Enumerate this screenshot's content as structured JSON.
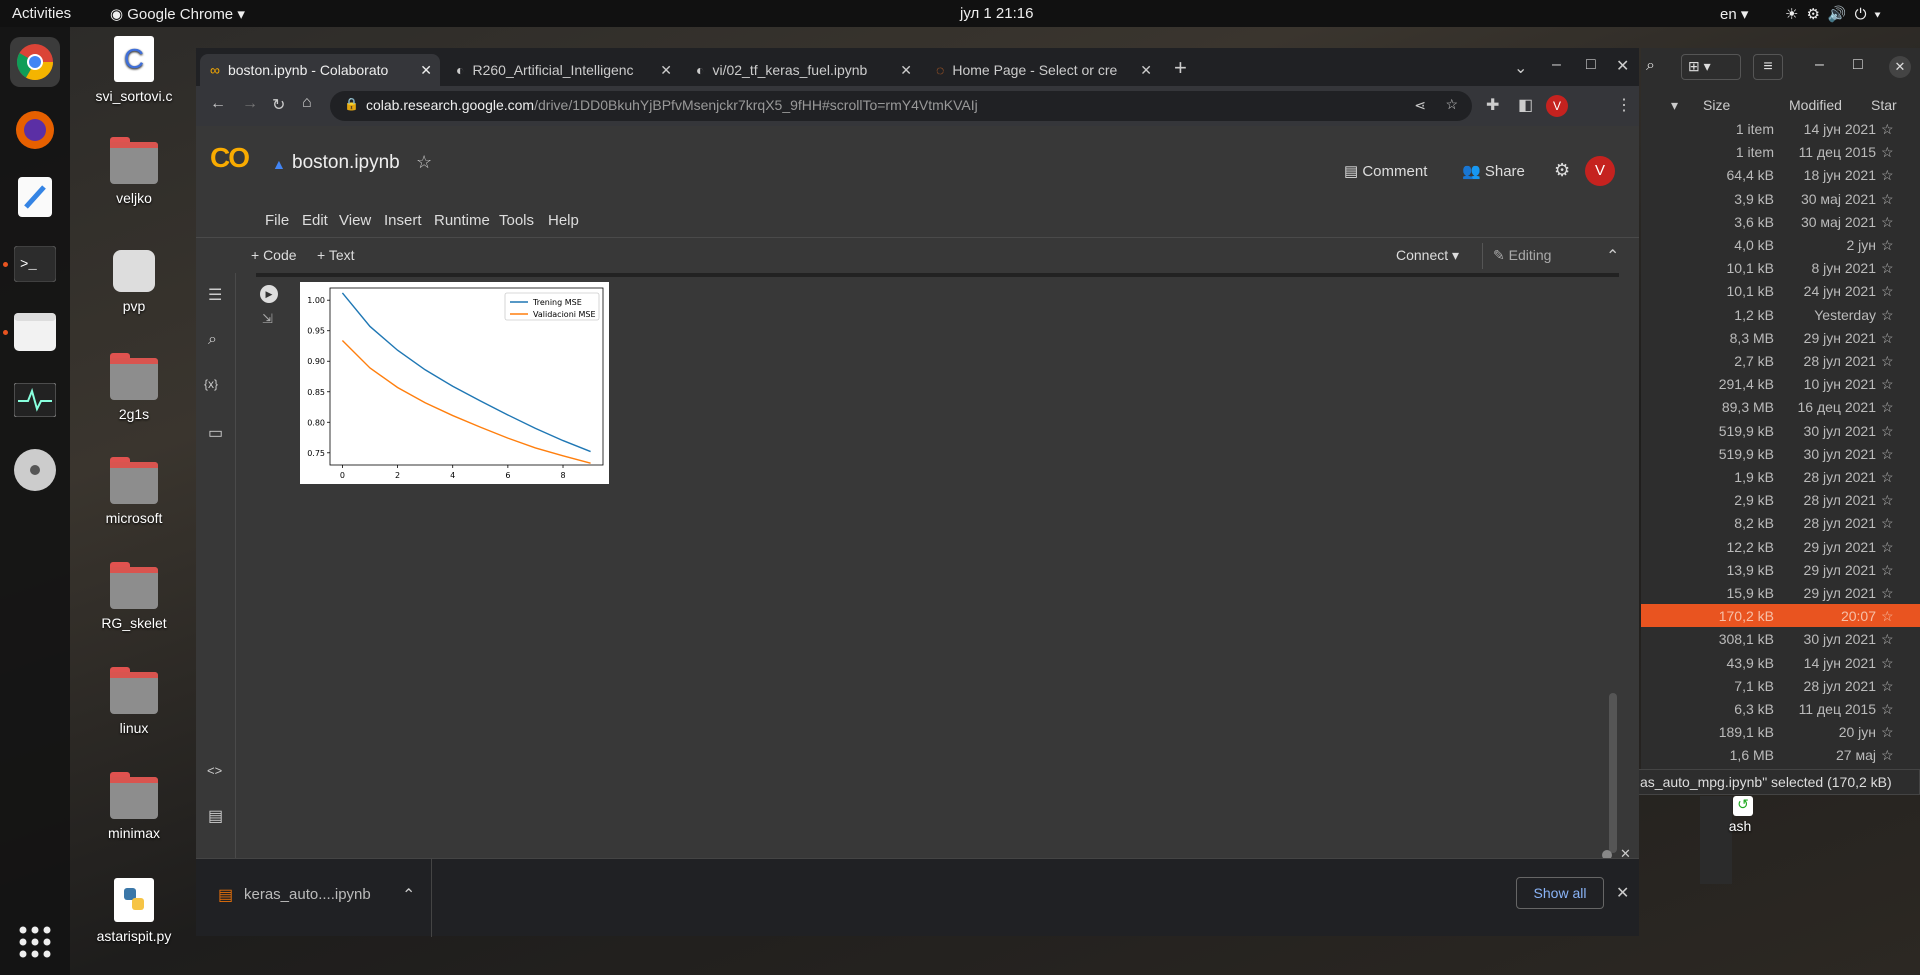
{
  "topbar": {
    "activities": "Activities",
    "app": "Google Chrome",
    "clock": "јул 1  21:16",
    "lang": "en"
  },
  "desktop": {
    "icons": [
      "svi_sortovi.c",
      "veljko",
      "pvp",
      "2g1s",
      "microsoft",
      "RG_skelet",
      "linux",
      "minimax",
      "astarispit.py"
    ]
  },
  "filemanager": {
    "headers": {
      "size": "Size",
      "modified": "Modified",
      "star": "Star"
    },
    "rows": [
      {
        "size": "1 item",
        "modified": "14 јун 2021"
      },
      {
        "size": "1 item",
        "modified": "11 дец 2015"
      },
      {
        "size": "64,4 kB",
        "modified": "18 јун 2021"
      },
      {
        "size": "3,9 kB",
        "modified": "30 мај 2021"
      },
      {
        "size": "3,6 kB",
        "modified": "30 мај 2021"
      },
      {
        "size": "4,0 kB",
        "modified": "2 јун"
      },
      {
        "size": "10,1 kB",
        "modified": "8 јун 2021"
      },
      {
        "size": "10,1 kB",
        "modified": "24 јун 2021"
      },
      {
        "size": "1,2 kB",
        "modified": "Yesterday"
      },
      {
        "size": "8,3 MB",
        "modified": "29 јун 2021"
      },
      {
        "size": "2,7 kB",
        "modified": "28 јул 2021"
      },
      {
        "size": "291,4 kB",
        "modified": "10 јун 2021"
      },
      {
        "size": "89,3 MB",
        "modified": "16 дец 2021"
      },
      {
        "size": "519,9 kB",
        "modified": "30 јул 2021"
      },
      {
        "size": "519,9 kB",
        "modified": "30 јул 2021"
      },
      {
        "size": "1,9 kB",
        "modified": "28 јул 2021"
      },
      {
        "size": "2,9 kB",
        "modified": "28 јул 2021"
      },
      {
        "size": "8,2 kB",
        "modified": "28 јул 2021"
      },
      {
        "size": "12,2 kB",
        "modified": "29 јул 2021"
      },
      {
        "size": "13,9 kB",
        "modified": "29 јул 2021"
      },
      {
        "size": "15,9 kB",
        "modified": "29 јул 2021"
      },
      {
        "size": "170,2 kB",
        "modified": "20:07"
      },
      {
        "size": "308,1 kB",
        "modified": "30 јул 2021"
      },
      {
        "size": "43,9 kB",
        "modified": "14 јун 2021"
      },
      {
        "size": "7,1 kB",
        "modified": "28 јул 2021"
      },
      {
        "size": "6,3 kB",
        "modified": "11 дец 2015"
      },
      {
        "size": "189,1 kB",
        "modified": "20 јун"
      },
      {
        "size": "1,6 MB",
        "modified": "27 мај"
      }
    ],
    "status": "as_auto_mpg.ipynb\" selected  (170,2 kB)",
    "trash": "ash"
  },
  "chrome": {
    "tabs": [
      "boston.ipynb - Colaborato",
      "R260_Artificial_Intelligenc",
      "vi/02_tf_keras_fuel.ipynb",
      "Home Page - Select or cre"
    ],
    "url_host": "colab.research.google.com",
    "url_path": "/drive/1DD0BkuhYjBPfvMsenjckr7krqX5_9fHH#scrollTo=rmY4VtmKVAIj",
    "avatar": "V"
  },
  "colab": {
    "logo": "CO",
    "filename": "boston.ipynb",
    "menu": [
      "File",
      "Edit",
      "View",
      "Insert",
      "Runtime",
      "Tools",
      "Help"
    ],
    "comment": "Comment",
    "share": "Share",
    "avatar": "V",
    "add_code": "+ Code",
    "add_text": "+ Text",
    "connect": "Connect",
    "editing": "Editing"
  },
  "chart_data": {
    "type": "line",
    "xlim": [
      -0.45,
      9.45
    ],
    "ylim": [
      0.73,
      1.02
    ],
    "xticks": [
      0,
      2,
      4,
      6,
      8
    ],
    "yticks": [
      0.75,
      0.8,
      0.85,
      0.9,
      0.95,
      1.0
    ],
    "ytick_labels": [
      "0.75",
      "0.80",
      "0.85",
      "0.90",
      "0.95",
      "1.00"
    ],
    "legend_position": "upper-right",
    "series": [
      {
        "name": "Trening MSE",
        "color": "#1f77b4",
        "x": [
          0,
          1,
          2,
          3,
          4,
          5,
          6,
          7,
          8,
          9
        ],
        "y": [
          1.012,
          0.957,
          0.918,
          0.886,
          0.859,
          0.835,
          0.812,
          0.79,
          0.77,
          0.752
        ]
      },
      {
        "name": "Validacioni MSE",
        "color": "#ff7f0e",
        "x": [
          0,
          1,
          2,
          3,
          4,
          5,
          6,
          7,
          8,
          9
        ],
        "y": [
          0.934,
          0.889,
          0.857,
          0.832,
          0.811,
          0.792,
          0.774,
          0.758,
          0.745,
          0.733
        ]
      }
    ]
  },
  "download": {
    "filename": "keras_auto....ipynb",
    "show_all": "Show all"
  }
}
